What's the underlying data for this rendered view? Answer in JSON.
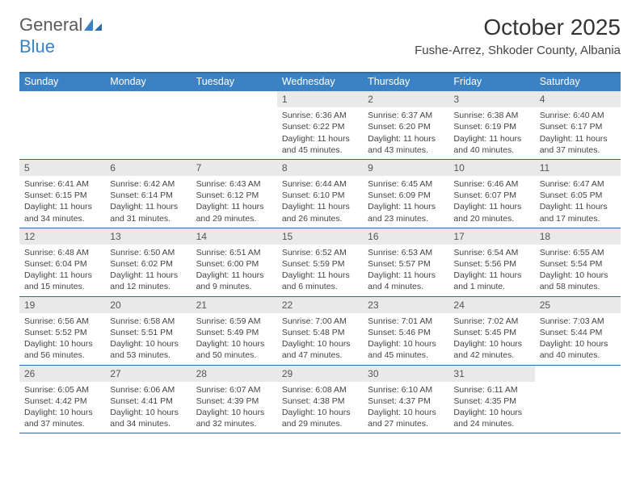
{
  "logo": {
    "part1": "General",
    "part2": "Blue"
  },
  "title": "October 2025",
  "location": "Fushe-Arrez, Shkoder County, Albania",
  "colors": {
    "header_bg": "#3b82c4",
    "border": "#2e6ca8",
    "daynum_bg": "#e9e9e9",
    "text": "#444444",
    "page_bg": "#ffffff"
  },
  "fonts": {
    "title_size": 28,
    "location_size": 15,
    "dow_size": 12.5,
    "daynum_size": 12,
    "body_size": 10.5
  },
  "days_of_week": [
    "Sunday",
    "Monday",
    "Tuesday",
    "Wednesday",
    "Thursday",
    "Friday",
    "Saturday"
  ],
  "weeks": [
    [
      null,
      null,
      null,
      {
        "n": "1",
        "sunrise": "6:36 AM",
        "sunset": "6:22 PM",
        "daylight": "11 hours and 45 minutes."
      },
      {
        "n": "2",
        "sunrise": "6:37 AM",
        "sunset": "6:20 PM",
        "daylight": "11 hours and 43 minutes."
      },
      {
        "n": "3",
        "sunrise": "6:38 AM",
        "sunset": "6:19 PM",
        "daylight": "11 hours and 40 minutes."
      },
      {
        "n": "4",
        "sunrise": "6:40 AM",
        "sunset": "6:17 PM",
        "daylight": "11 hours and 37 minutes."
      }
    ],
    [
      {
        "n": "5",
        "sunrise": "6:41 AM",
        "sunset": "6:15 PM",
        "daylight": "11 hours and 34 minutes."
      },
      {
        "n": "6",
        "sunrise": "6:42 AM",
        "sunset": "6:14 PM",
        "daylight": "11 hours and 31 minutes."
      },
      {
        "n": "7",
        "sunrise": "6:43 AM",
        "sunset": "6:12 PM",
        "daylight": "11 hours and 29 minutes."
      },
      {
        "n": "8",
        "sunrise": "6:44 AM",
        "sunset": "6:10 PM",
        "daylight": "11 hours and 26 minutes."
      },
      {
        "n": "9",
        "sunrise": "6:45 AM",
        "sunset": "6:09 PM",
        "daylight": "11 hours and 23 minutes."
      },
      {
        "n": "10",
        "sunrise": "6:46 AM",
        "sunset": "6:07 PM",
        "daylight": "11 hours and 20 minutes."
      },
      {
        "n": "11",
        "sunrise": "6:47 AM",
        "sunset": "6:05 PM",
        "daylight": "11 hours and 17 minutes."
      }
    ],
    [
      {
        "n": "12",
        "sunrise": "6:48 AM",
        "sunset": "6:04 PM",
        "daylight": "11 hours and 15 minutes."
      },
      {
        "n": "13",
        "sunrise": "6:50 AM",
        "sunset": "6:02 PM",
        "daylight": "11 hours and 12 minutes."
      },
      {
        "n": "14",
        "sunrise": "6:51 AM",
        "sunset": "6:00 PM",
        "daylight": "11 hours and 9 minutes."
      },
      {
        "n": "15",
        "sunrise": "6:52 AM",
        "sunset": "5:59 PM",
        "daylight": "11 hours and 6 minutes."
      },
      {
        "n": "16",
        "sunrise": "6:53 AM",
        "sunset": "5:57 PM",
        "daylight": "11 hours and 4 minutes."
      },
      {
        "n": "17",
        "sunrise": "6:54 AM",
        "sunset": "5:56 PM",
        "daylight": "11 hours and 1 minute."
      },
      {
        "n": "18",
        "sunrise": "6:55 AM",
        "sunset": "5:54 PM",
        "daylight": "10 hours and 58 minutes."
      }
    ],
    [
      {
        "n": "19",
        "sunrise": "6:56 AM",
        "sunset": "5:52 PM",
        "daylight": "10 hours and 56 minutes."
      },
      {
        "n": "20",
        "sunrise": "6:58 AM",
        "sunset": "5:51 PM",
        "daylight": "10 hours and 53 minutes."
      },
      {
        "n": "21",
        "sunrise": "6:59 AM",
        "sunset": "5:49 PM",
        "daylight": "10 hours and 50 minutes."
      },
      {
        "n": "22",
        "sunrise": "7:00 AM",
        "sunset": "5:48 PM",
        "daylight": "10 hours and 47 minutes."
      },
      {
        "n": "23",
        "sunrise": "7:01 AM",
        "sunset": "5:46 PM",
        "daylight": "10 hours and 45 minutes."
      },
      {
        "n": "24",
        "sunrise": "7:02 AM",
        "sunset": "5:45 PM",
        "daylight": "10 hours and 42 minutes."
      },
      {
        "n": "25",
        "sunrise": "7:03 AM",
        "sunset": "5:44 PM",
        "daylight": "10 hours and 40 minutes."
      }
    ],
    [
      {
        "n": "26",
        "sunrise": "6:05 AM",
        "sunset": "4:42 PM",
        "daylight": "10 hours and 37 minutes."
      },
      {
        "n": "27",
        "sunrise": "6:06 AM",
        "sunset": "4:41 PM",
        "daylight": "10 hours and 34 minutes."
      },
      {
        "n": "28",
        "sunrise": "6:07 AM",
        "sunset": "4:39 PM",
        "daylight": "10 hours and 32 minutes."
      },
      {
        "n": "29",
        "sunrise": "6:08 AM",
        "sunset": "4:38 PM",
        "daylight": "10 hours and 29 minutes."
      },
      {
        "n": "30",
        "sunrise": "6:10 AM",
        "sunset": "4:37 PM",
        "daylight": "10 hours and 27 minutes."
      },
      {
        "n": "31",
        "sunrise": "6:11 AM",
        "sunset": "4:35 PM",
        "daylight": "10 hours and 24 minutes."
      },
      null
    ]
  ]
}
